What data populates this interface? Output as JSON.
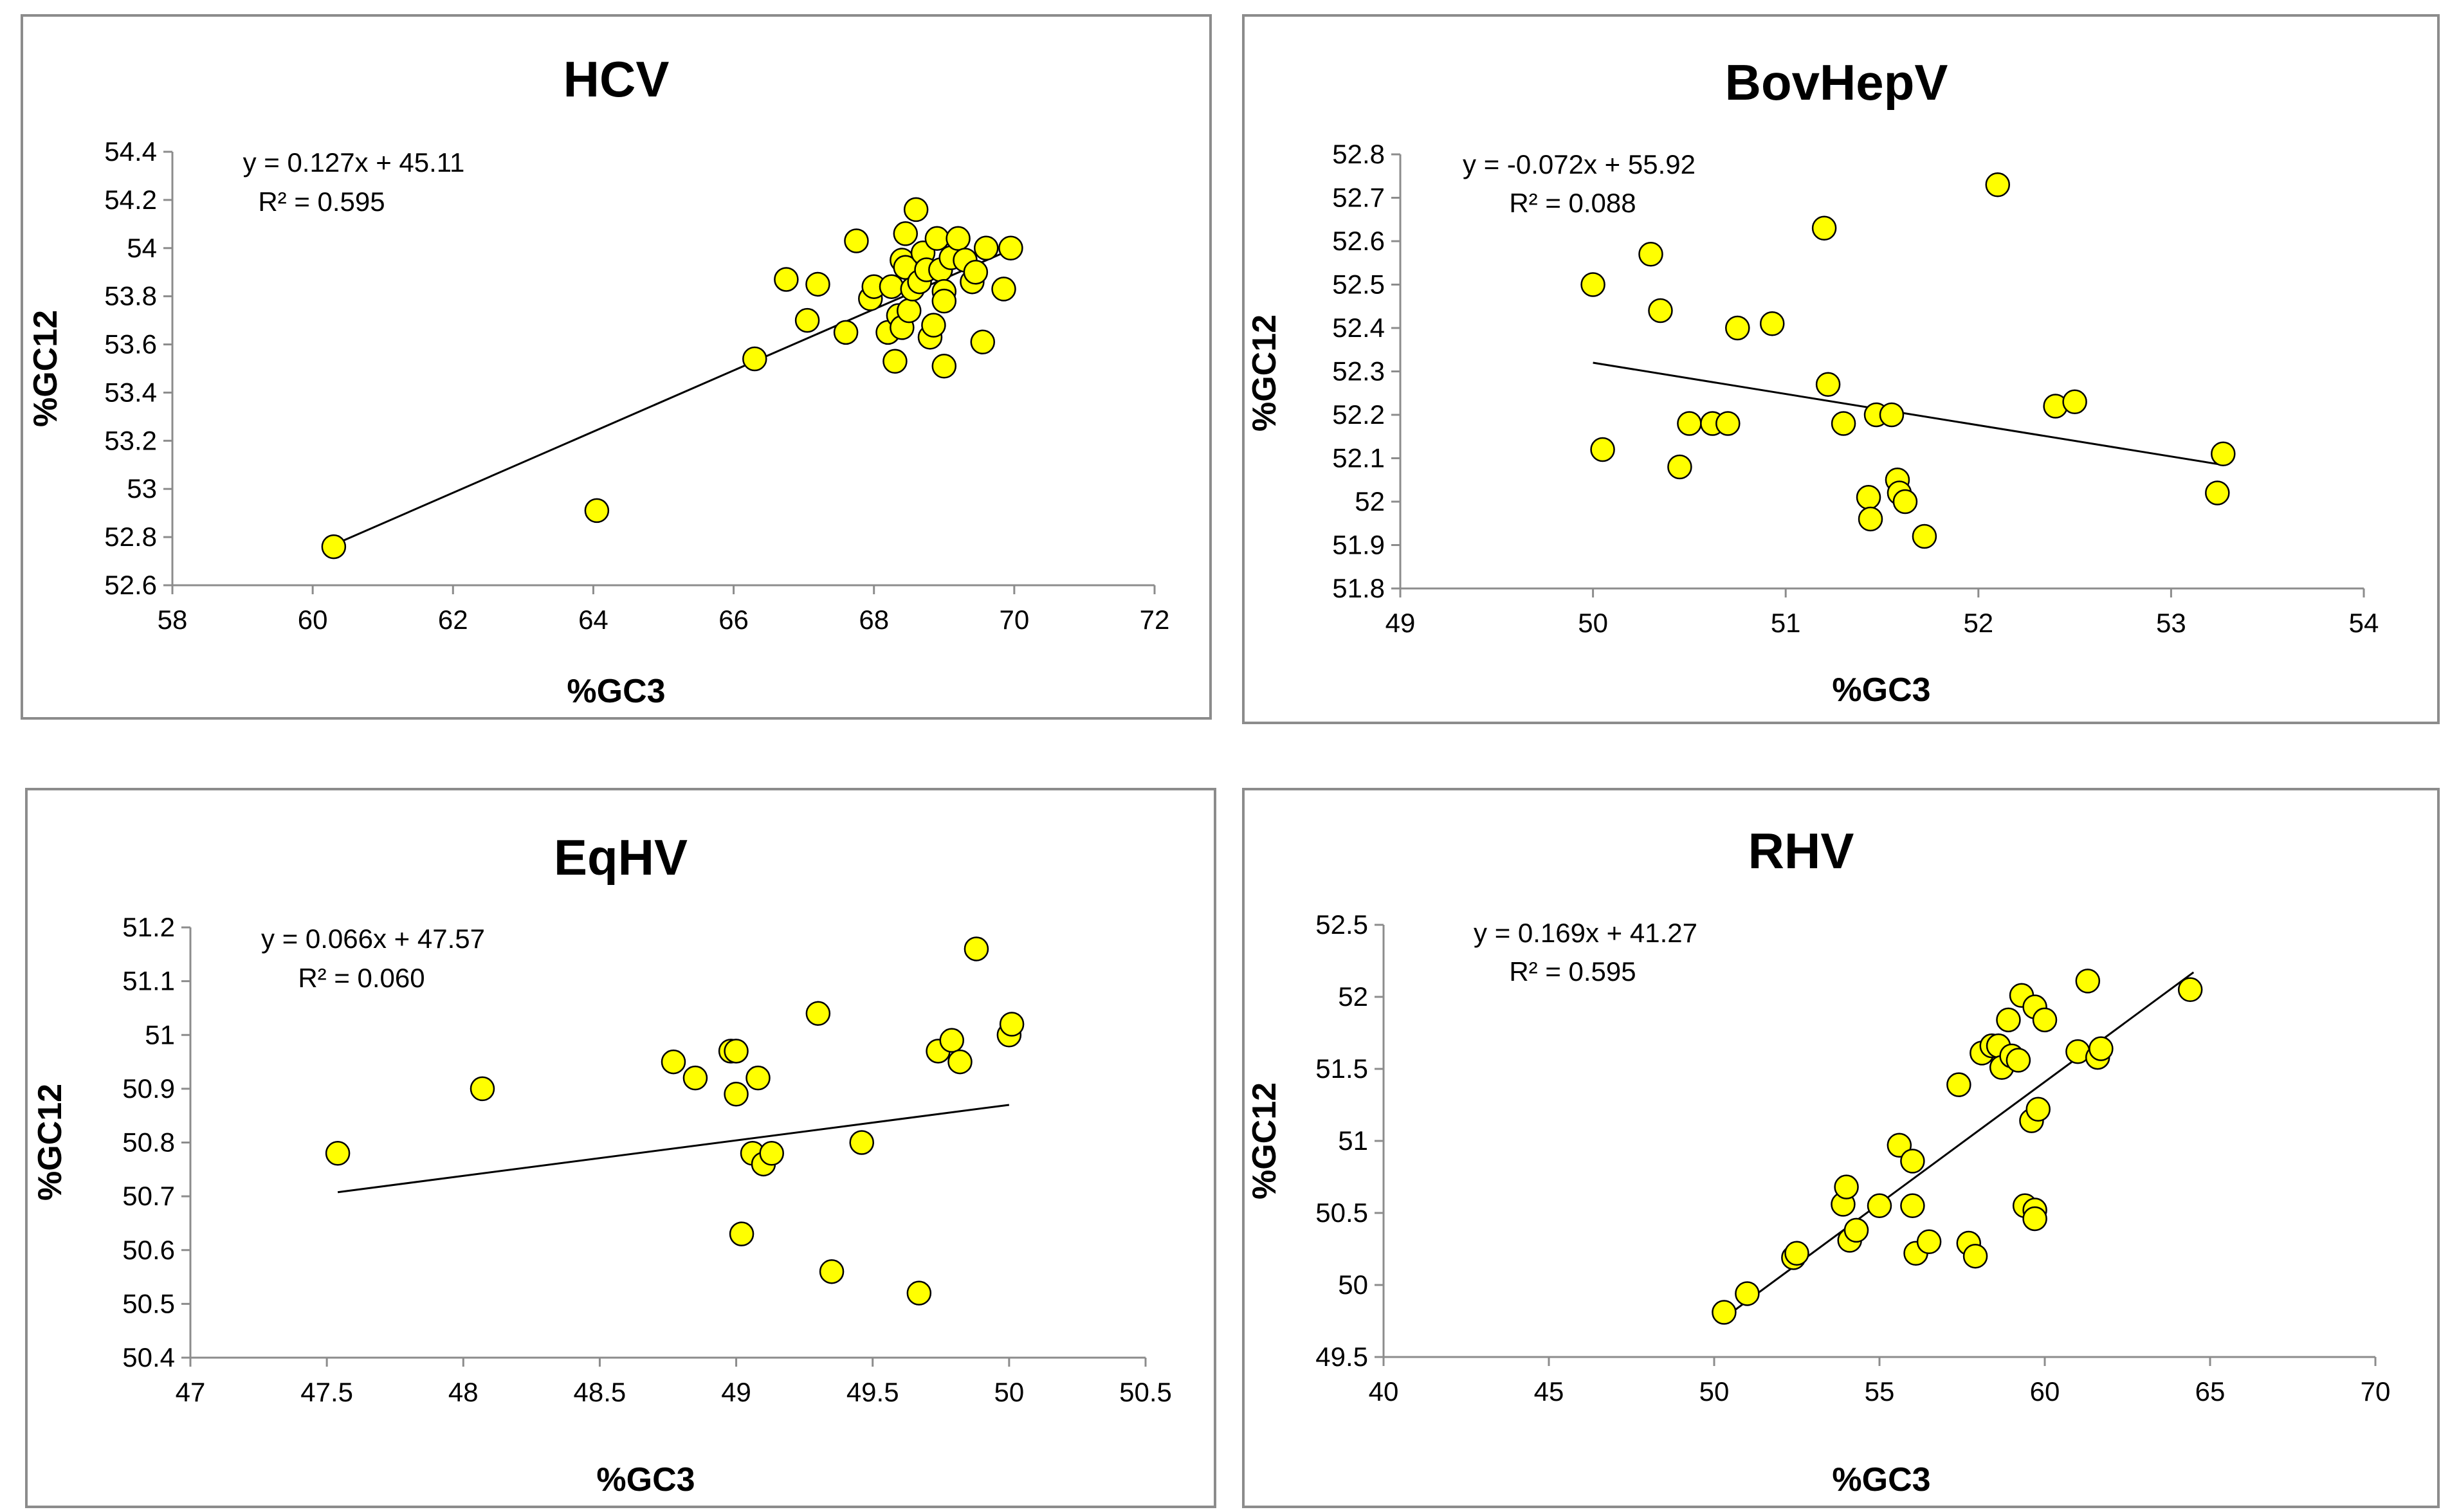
{
  "chart_data": [
    {
      "type": "scatter",
      "title": "HCV",
      "xlabel": "%GC3",
      "ylabel": "%GC12",
      "xlim": [
        58,
        72
      ],
      "ylim": [
        52.6,
        54.4
      ],
      "xticks": [
        58,
        60,
        62,
        64,
        66,
        68,
        70,
        72
      ],
      "yticks": [
        52.6,
        52.8,
        53,
        53.2,
        53.4,
        53.6,
        53.8,
        54,
        54.2,
        54.4
      ],
      "xtick_labels": [
        "58",
        "60",
        "62",
        "64",
        "66",
        "68",
        "70",
        "72"
      ],
      "ytick_labels": [
        "52.6",
        "52.8",
        "53",
        "53.2",
        "53.4",
        "53.6",
        "53.8",
        "54",
        "54.2",
        "54.4"
      ],
      "equation": "y = 0.127x + 45.11",
      "r2": "R² = 0.595",
      "trendline": {
        "x": [
          60.3,
          70.0
        ]
      },
      "points": [
        [
          60.3,
          52.76
        ],
        [
          64.05,
          52.91
        ],
        [
          66.3,
          53.54
        ],
        [
          66.75,
          53.87
        ],
        [
          67.05,
          53.7
        ],
        [
          67.2,
          53.85
        ],
        [
          67.6,
          53.65
        ],
        [
          67.75,
          54.03
        ],
        [
          67.95,
          53.79
        ],
        [
          68.0,
          53.84
        ],
        [
          68.2,
          53.65
        ],
        [
          68.25,
          53.84
        ],
        [
          68.3,
          53.53
        ],
        [
          68.35,
          53.72
        ],
        [
          68.4,
          53.95
        ],
        [
          68.4,
          53.67
        ],
        [
          68.45,
          54.06
        ],
        [
          68.45,
          53.92
        ],
        [
          68.5,
          53.74
        ],
        [
          68.55,
          53.83
        ],
        [
          68.6,
          54.16
        ],
        [
          68.65,
          53.86
        ],
        [
          68.7,
          53.98
        ],
        [
          68.75,
          53.91
        ],
        [
          68.8,
          53.63
        ],
        [
          68.85,
          53.68
        ],
        [
          68.9,
          54.04
        ],
        [
          68.95,
          53.91
        ],
        [
          69.0,
          53.82
        ],
        [
          69.0,
          53.78
        ],
        [
          69.0,
          53.51
        ],
        [
          69.1,
          53.96
        ],
        [
          69.2,
          54.04
        ],
        [
          69.3,
          53.95
        ],
        [
          69.4,
          53.86
        ],
        [
          69.45,
          53.9
        ],
        [
          69.55,
          53.61
        ],
        [
          69.6,
          54.0
        ],
        [
          69.85,
          53.83
        ],
        [
          69.95,
          54.0
        ]
      ]
    },
    {
      "type": "scatter",
      "title": "BovHepV",
      "xlabel": "%GC3",
      "ylabel": "%GC12",
      "xlim": [
        49,
        54
      ],
      "ylim": [
        51.8,
        52.8
      ],
      "xticks": [
        49,
        50,
        51,
        52,
        53,
        54
      ],
      "yticks": [
        51.8,
        51.9,
        52,
        52.1,
        52.2,
        52.3,
        52.4,
        52.5,
        52.6,
        52.7,
        52.8
      ],
      "xtick_labels": [
        "49",
        "50",
        "51",
        "52",
        "53",
        "54"
      ],
      "ytick_labels": [
        "51.8",
        "51.9",
        "52",
        "52.1",
        "52.2",
        "52.3",
        "52.4",
        "52.5",
        "52.6",
        "52.7",
        "52.8"
      ],
      "equation": "y = -0.072x + 55.92",
      "r2": "R² = 0.088",
      "trendline": {
        "x": [
          50.0,
          53.27
        ]
      },
      "points": [
        [
          50.0,
          52.5
        ],
        [
          50.05,
          52.12
        ],
        [
          50.3,
          52.57
        ],
        [
          50.35,
          52.44
        ],
        [
          50.45,
          52.08
        ],
        [
          50.5,
          52.18
        ],
        [
          50.62,
          52.18
        ],
        [
          50.7,
          52.18
        ],
        [
          50.75,
          52.4
        ],
        [
          50.93,
          52.41
        ],
        [
          51.2,
          52.63
        ],
        [
          51.22,
          52.27
        ],
        [
          51.3,
          52.18
        ],
        [
          51.43,
          52.01
        ],
        [
          51.44,
          51.96
        ],
        [
          51.47,
          52.2
        ],
        [
          51.55,
          52.2
        ],
        [
          51.58,
          52.05
        ],
        [
          51.59,
          52.02
        ],
        [
          51.62,
          52.0
        ],
        [
          51.72,
          51.92
        ],
        [
          52.1,
          52.73
        ],
        [
          52.4,
          52.22
        ],
        [
          52.5,
          52.23
        ],
        [
          53.24,
          52.02
        ],
        [
          53.27,
          52.11
        ]
      ]
    },
    {
      "type": "scatter",
      "title": "EqHV",
      "xlabel": "%GC3",
      "ylabel": "%GC12",
      "xlim": [
        47,
        50.5
      ],
      "ylim": [
        50.4,
        51.2
      ],
      "xticks": [
        47,
        47.5,
        48,
        48.5,
        49,
        49.5,
        50,
        50.5
      ],
      "yticks": [
        50.4,
        50.5,
        50.6,
        50.7,
        50.8,
        50.9,
        51,
        51.1,
        51.2
      ],
      "xtick_labels": [
        "47",
        "47.5",
        "48",
        "48.5",
        "49",
        "49.5",
        "50",
        "50.5"
      ],
      "ytick_labels": [
        "50.4",
        "50.5",
        "50.6",
        "50.7",
        "50.8",
        "50.9",
        "51",
        "51.1",
        "51.2"
      ],
      "equation": "y = 0.066x + 47.57",
      "r2": "R² = 0.060",
      "trendline": {
        "x": [
          47.54,
          50.0
        ]
      },
      "points": [
        [
          47.54,
          50.78
        ],
        [
          48.07,
          50.9
        ],
        [
          48.77,
          50.95
        ],
        [
          48.85,
          50.92
        ],
        [
          48.98,
          50.97
        ],
        [
          49.0,
          50.97
        ],
        [
          49.0,
          50.89
        ],
        [
          49.02,
          50.63
        ],
        [
          49.06,
          50.78
        ],
        [
          49.08,
          50.92
        ],
        [
          49.1,
          50.76
        ],
        [
          49.13,
          50.78
        ],
        [
          49.3,
          51.04
        ],
        [
          49.35,
          50.56
        ],
        [
          49.46,
          50.8
        ],
        [
          49.67,
          50.52
        ],
        [
          49.74,
          50.97
        ],
        [
          49.79,
          50.99
        ],
        [
          49.82,
          50.95
        ],
        [
          49.88,
          51.16
        ],
        [
          50.0,
          51.0
        ],
        [
          50.01,
          51.02
        ]
      ]
    },
    {
      "type": "scatter",
      "title": "RHV",
      "xlabel": "%GC3",
      "ylabel": "%GC12",
      "xlim": [
        40,
        70
      ],
      "ylim": [
        49.5,
        52.5
      ],
      "xticks": [
        40,
        45,
        50,
        55,
        60,
        65,
        70
      ],
      "yticks": [
        49.5,
        50,
        50.5,
        51,
        51.5,
        52,
        52.5
      ],
      "xtick_labels": [
        "40",
        "45",
        "50",
        "55",
        "60",
        "65",
        "70"
      ],
      "ytick_labels": [
        "49.5",
        "50",
        "50.5",
        "51",
        "51.5",
        "52",
        "52.5"
      ],
      "equation": "y = 0.169x + 41.27",
      "r2": "R² = 0.595",
      "trendline": {
        "x": [
          50.3,
          64.5
        ]
      },
      "points": [
        [
          50.3,
          49.81
        ],
        [
          51.0,
          49.94
        ],
        [
          52.4,
          50.19
        ],
        [
          52.5,
          50.22
        ],
        [
          53.9,
          50.56
        ],
        [
          54.0,
          50.68
        ],
        [
          54.1,
          50.31
        ],
        [
          54.3,
          50.38
        ],
        [
          55.0,
          50.55
        ],
        [
          55.6,
          50.97
        ],
        [
          56.0,
          50.55
        ],
        [
          56.0,
          50.86
        ],
        [
          56.1,
          50.22
        ],
        [
          56.5,
          50.3
        ],
        [
          57.4,
          51.39
        ],
        [
          57.7,
          50.29
        ],
        [
          57.9,
          50.2
        ],
        [
          58.1,
          51.61
        ],
        [
          58.4,
          51.66
        ],
        [
          58.6,
          51.66
        ],
        [
          58.7,
          51.51
        ],
        [
          58.9,
          51.84
        ],
        [
          59.0,
          51.59
        ],
        [
          59.2,
          51.56
        ],
        [
          59.3,
          52.01
        ],
        [
          59.4,
          50.55
        ],
        [
          59.6,
          51.14
        ],
        [
          59.7,
          50.52
        ],
        [
          59.7,
          51.93
        ],
        [
          59.7,
          50.46
        ],
        [
          59.8,
          51.22
        ],
        [
          60.0,
          51.84
        ],
        [
          61.0,
          51.62
        ],
        [
          61.3,
          52.11
        ],
        [
          61.6,
          51.58
        ],
        [
          61.7,
          51.64
        ],
        [
          64.4,
          52.05
        ]
      ]
    }
  ]
}
